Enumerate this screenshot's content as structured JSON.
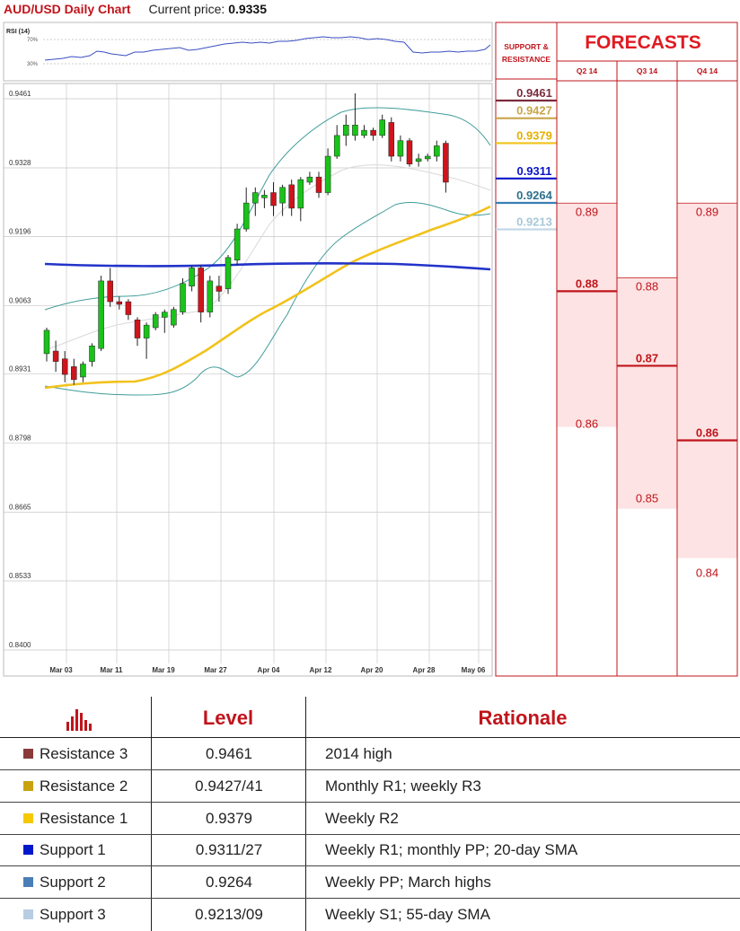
{
  "header": {
    "title": "AUD/USD Daily Chart",
    "current_price_label": "Current price:",
    "current_price": "0.9335"
  },
  "rsi": {
    "label": "RSI (14)",
    "upper_tick": "70%",
    "lower_tick": "30%"
  },
  "sr_panel": {
    "title_line1": "SUPPORT &",
    "title_line2": "RESISTANCE",
    "levels": [
      {
        "value": "0.9461",
        "price": 0.9461,
        "color": "#7b2c3c",
        "line": "#7b2c3c"
      },
      {
        "value": "0.9427",
        "price": 0.9427,
        "color": "#c9a44a",
        "line": "#c9a44a"
      },
      {
        "value": "0.9379",
        "price": 0.9379,
        "color": "#e4b000",
        "line": "#f2c21b"
      },
      {
        "value": "0.9311",
        "price": 0.9311,
        "color": "#0b14c8",
        "line": "#0b14c8"
      },
      {
        "value": "0.9264",
        "price": 0.9264,
        "color": "#2e6f8e",
        "line": "#3b7fb4"
      },
      {
        "value": "0.9213",
        "price": 0.9213,
        "color": "#a8c8d8",
        "line": "#c3d7e6"
      }
    ]
  },
  "forecasts": {
    "title": "FORECASTS",
    "quarters": [
      {
        "label": "Q2 14",
        "high": "0.89",
        "mid": "0.88",
        "low": "0.86",
        "high_v": 0.89,
        "mid_v": 0.88,
        "low_v": 0.86
      },
      {
        "label": "Q3 14",
        "high": "0.88",
        "mid": "0.87",
        "low": "0.85",
        "high_v": 0.88,
        "mid_v": 0.87,
        "low_v": 0.85
      },
      {
        "label": "Q4 14",
        "high": "0.89",
        "mid": "0.86",
        "low": "0.84",
        "high_v": 0.89,
        "mid_v": 0.86,
        "low_v": 0.84
      }
    ]
  },
  "chart_data": {
    "type": "candlestick",
    "title": "AUD/USD Daily Chart",
    "ylim": [
      0.84,
      0.9461
    ],
    "y_ticks": [
      "0.9461",
      "0.9328",
      "0.9196",
      "0.9063",
      "0.8931",
      "0.8798",
      "0.8665",
      "0.8533",
      "0.8400"
    ],
    "y_tick_values": [
      0.9461,
      0.9328,
      0.9196,
      0.9063,
      0.8931,
      0.8798,
      0.8665,
      0.8533,
      0.84
    ],
    "x_ticks": [
      "Mar 03",
      "Mar 11",
      "Mar 19",
      "Mar 27",
      "Apr 04",
      "Apr 12",
      "Apr 20",
      "Apr 28",
      "May 06"
    ],
    "x_tick_index": [
      0,
      6,
      12,
      18,
      24,
      30,
      36,
      42,
      47
    ],
    "grid": true,
    "candles": [
      {
        "o": 0.896,
        "h": 0.901,
        "l": 0.8945,
        "c": 0.9005
      },
      {
        "o": 0.8965,
        "h": 0.8985,
        "l": 0.8925,
        "c": 0.8945
      },
      {
        "o": 0.895,
        "h": 0.8965,
        "l": 0.8905,
        "c": 0.892
      },
      {
        "o": 0.8935,
        "h": 0.895,
        "l": 0.89,
        "c": 0.891
      },
      {
        "o": 0.8915,
        "h": 0.8945,
        "l": 0.8905,
        "c": 0.894
      },
      {
        "o": 0.8945,
        "h": 0.898,
        "l": 0.8935,
        "c": 0.8975
      },
      {
        "o": 0.897,
        "h": 0.911,
        "l": 0.8965,
        "c": 0.91
      },
      {
        "o": 0.91,
        "h": 0.9125,
        "l": 0.905,
        "c": 0.906
      },
      {
        "o": 0.906,
        "h": 0.907,
        "l": 0.9045,
        "c": 0.9055
      },
      {
        "o": 0.906,
        "h": 0.9065,
        "l": 0.9025,
        "c": 0.9035
      },
      {
        "o": 0.9025,
        "h": 0.903,
        "l": 0.8975,
        "c": 0.899
      },
      {
        "o": 0.899,
        "h": 0.902,
        "l": 0.895,
        "c": 0.9015
      },
      {
        "o": 0.901,
        "h": 0.904,
        "l": 0.9005,
        "c": 0.9035
      },
      {
        "o": 0.903,
        "h": 0.9045,
        "l": 0.9,
        "c": 0.904
      },
      {
        "o": 0.9015,
        "h": 0.905,
        "l": 0.901,
        "c": 0.9045
      },
      {
        "o": 0.904,
        "h": 0.9105,
        "l": 0.9035,
        "c": 0.9095
      },
      {
        "o": 0.909,
        "h": 0.913,
        "l": 0.908,
        "c": 0.9125
      },
      {
        "o": 0.9125,
        "h": 0.913,
        "l": 0.902,
        "c": 0.904
      },
      {
        "o": 0.904,
        "h": 0.911,
        "l": 0.903,
        "c": 0.91
      },
      {
        "o": 0.909,
        "h": 0.911,
        "l": 0.906,
        "c": 0.908
      },
      {
        "o": 0.9085,
        "h": 0.915,
        "l": 0.9075,
        "c": 0.9145
      },
      {
        "o": 0.914,
        "h": 0.921,
        "l": 0.913,
        "c": 0.92
      },
      {
        "o": 0.92,
        "h": 0.928,
        "l": 0.9195,
        "c": 0.925
      },
      {
        "o": 0.925,
        "h": 0.928,
        "l": 0.9225,
        "c": 0.927
      },
      {
        "o": 0.926,
        "h": 0.9275,
        "l": 0.924,
        "c": 0.9265
      },
      {
        "o": 0.927,
        "h": 0.929,
        "l": 0.9225,
        "c": 0.9245
      },
      {
        "o": 0.925,
        "h": 0.9285,
        "l": 0.9225,
        "c": 0.928
      },
      {
        "o": 0.9285,
        "h": 0.9295,
        "l": 0.9225,
        "c": 0.924
      },
      {
        "o": 0.924,
        "h": 0.93,
        "l": 0.9215,
        "c": 0.9295
      },
      {
        "o": 0.929,
        "h": 0.931,
        "l": 0.9285,
        "c": 0.93
      },
      {
        "o": 0.93,
        "h": 0.931,
        "l": 0.926,
        "c": 0.927
      },
      {
        "o": 0.927,
        "h": 0.9355,
        "l": 0.9265,
        "c": 0.934
      },
      {
        "o": 0.934,
        "h": 0.94,
        "l": 0.9335,
        "c": 0.938
      },
      {
        "o": 0.938,
        "h": 0.942,
        "l": 0.936,
        "c": 0.94
      },
      {
        "o": 0.938,
        "h": 0.9461,
        "l": 0.937,
        "c": 0.94
      },
      {
        "o": 0.938,
        "h": 0.94,
        "l": 0.9375,
        "c": 0.939
      },
      {
        "o": 0.939,
        "h": 0.9395,
        "l": 0.937,
        "c": 0.938
      },
      {
        "o": 0.938,
        "h": 0.942,
        "l": 0.9375,
        "c": 0.941
      },
      {
        "o": 0.9405,
        "h": 0.9415,
        "l": 0.933,
        "c": 0.934
      },
      {
        "o": 0.934,
        "h": 0.938,
        "l": 0.933,
        "c": 0.937
      },
      {
        "o": 0.937,
        "h": 0.9375,
        "l": 0.932,
        "c": 0.9325
      },
      {
        "o": 0.933,
        "h": 0.9345,
        "l": 0.932,
        "c": 0.9335
      },
      {
        "o": 0.9335,
        "h": 0.9345,
        "l": 0.933,
        "c": 0.934
      },
      {
        "o": 0.934,
        "h": 0.937,
        "l": 0.933,
        "c": 0.936
      },
      {
        "o": 0.9365,
        "h": 0.937,
        "l": 0.927,
        "c": 0.929
      }
    ]
  },
  "table": {
    "headers": {
      "level": "Level",
      "rationale": "Rationale"
    },
    "icon": "bar-chart-icon",
    "rows": [
      {
        "name": "Resistance 3",
        "level": "0.9461",
        "rationale": "2014 high",
        "color": "#8b3a3a"
      },
      {
        "name": "Resistance 2",
        "level": "0.9427/41",
        "rationale": "Monthly R1; weekly R3",
        "color": "#c9a210"
      },
      {
        "name": "Resistance 1",
        "level": "0.9379",
        "rationale": "Weekly R2",
        "color": "#f5c800"
      },
      {
        "name": "Support 1",
        "level": "0.9311/27",
        "rationale": "Weekly R1; monthly PP; 20-day SMA",
        "color": "#0018cc"
      },
      {
        "name": "Support 2",
        "level": "0.9264",
        "rationale": "Weekly PP; March highs",
        "color": "#4a7eb8"
      },
      {
        "name": "Support 3",
        "level": "0.9213/09",
        "rationale": "Weekly S1; 55-day SMA",
        "color": "#b8cce4"
      }
    ]
  }
}
